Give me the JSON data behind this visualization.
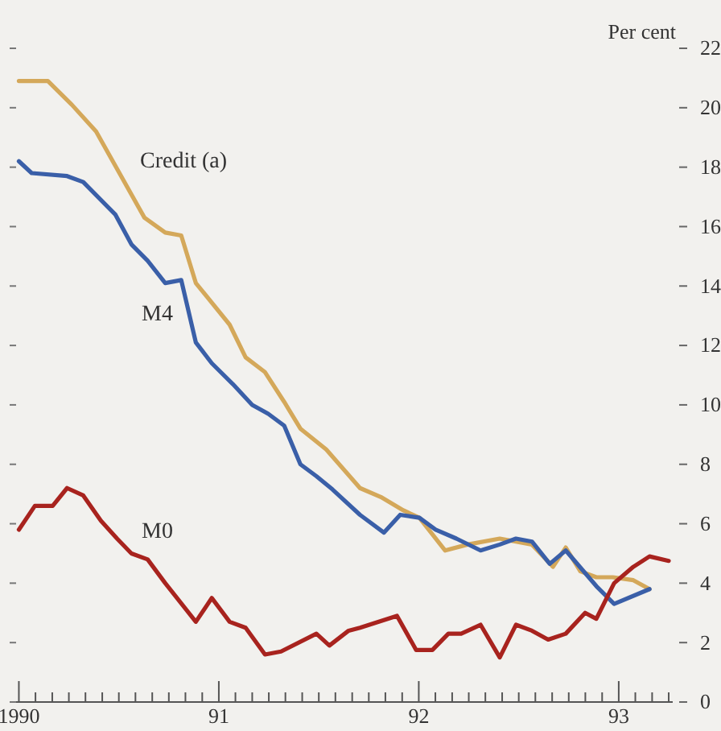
{
  "chart_data": {
    "type": "line",
    "ylabel": "Per cent",
    "xlim": [
      1989.97,
      1993.27
    ],
    "ylim": [
      0,
      22
    ],
    "yticks": [
      0,
      2,
      4,
      6,
      8,
      10,
      12,
      14,
      16,
      18,
      20,
      22
    ],
    "xticks": [
      {
        "value": 1990,
        "label": "1990"
      },
      {
        "value": 1990.083,
        "label": null
      },
      {
        "value": 1990.167,
        "label": null
      },
      {
        "value": 1990.25,
        "label": null
      },
      {
        "value": 1990.333,
        "label": null
      },
      {
        "value": 1990.417,
        "label": null
      },
      {
        "value": 1990.5,
        "label": null
      },
      {
        "value": 1990.583,
        "label": null
      },
      {
        "value": 1990.667,
        "label": null
      },
      {
        "value": 1990.75,
        "label": null
      },
      {
        "value": 1990.833,
        "label": null
      },
      {
        "value": 1990.917,
        "label": null
      },
      {
        "value": 1991,
        "label": "91"
      },
      {
        "value": 1991.083,
        "label": null
      },
      {
        "value": 1991.167,
        "label": null
      },
      {
        "value": 1991.25,
        "label": null
      },
      {
        "value": 1991.333,
        "label": null
      },
      {
        "value": 1991.417,
        "label": null
      },
      {
        "value": 1991.5,
        "label": null
      },
      {
        "value": 1991.583,
        "label": null
      },
      {
        "value": 1991.667,
        "label": null
      },
      {
        "value": 1991.75,
        "label": null
      },
      {
        "value": 1991.833,
        "label": null
      },
      {
        "value": 1991.917,
        "label": null
      },
      {
        "value": 1992,
        "label": "92"
      },
      {
        "value": 1992.083,
        "label": null
      },
      {
        "value": 1992.167,
        "label": null
      },
      {
        "value": 1992.25,
        "label": null
      },
      {
        "value": 1992.333,
        "label": null
      },
      {
        "value": 1992.417,
        "label": null
      },
      {
        "value": 1992.5,
        "label": null
      },
      {
        "value": 1992.583,
        "label": null
      },
      {
        "value": 1992.667,
        "label": null
      },
      {
        "value": 1992.75,
        "label": null
      },
      {
        "value": 1992.833,
        "label": null
      },
      {
        "value": 1992.917,
        "label": null
      },
      {
        "value": 1993,
        "label": "93"
      },
      {
        "value": 1993.083,
        "label": null
      },
      {
        "value": 1993.167,
        "label": null
      },
      {
        "value": 1993.25,
        "label": null
      }
    ],
    "grid": false,
    "legend": false,
    "marker": "none",
    "line_style": "solid",
    "series": [
      {
        "name": "Credit (a)",
        "color": "#d4a85a",
        "x": [
          1990,
          1990.145,
          1990.265,
          1990.386,
          1990.628,
          1990.732,
          1990.812,
          1990.885,
          1991.054,
          1991.134,
          1991.231,
          1991.327,
          1991.408,
          1991.537,
          1991.706,
          1991.81,
          1991.923,
          1992.003,
          1992.132,
          1992.244,
          1992.405,
          1992.566,
          1992.671,
          1992.735,
          1992.808,
          1992.888,
          1992.969,
          1993.073,
          1993.154
        ],
        "values": [
          20.9,
          20.9,
          20.1,
          19.2,
          16.3,
          15.8,
          15.7,
          14.1,
          12.7,
          11.6,
          11.1,
          10.1,
          9.2,
          8.5,
          7.2,
          6.9,
          6.45,
          6.2,
          5.1,
          5.3,
          5.5,
          5.3,
          4.55,
          5.2,
          4.4,
          4.2,
          4.2,
          4.1,
          3.8
        ]
      },
      {
        "name": "M4",
        "color": "#3a5fa8",
        "x": [
          1990,
          1990.064,
          1990.241,
          1990.322,
          1990.483,
          1990.563,
          1990.644,
          1990.732,
          1990.812,
          1990.885,
          1990.965,
          1991.07,
          1991.167,
          1991.247,
          1991.327,
          1991.408,
          1991.488,
          1991.569,
          1991.706,
          1991.826,
          1991.907,
          1992.003,
          1992.084,
          1992.188,
          1992.309,
          1992.405,
          1992.486,
          1992.566,
          1992.655,
          1992.735,
          1992.888,
          1992.977,
          1993.154
        ],
        "values": [
          18.2,
          17.8,
          17.7,
          17.5,
          16.4,
          15.4,
          14.85,
          14.1,
          14.2,
          12.1,
          11.4,
          10.7,
          10.0,
          9.7,
          9.3,
          8.0,
          7.6,
          7.15,
          6.3,
          5.7,
          6.3,
          6.2,
          5.8,
          5.5,
          5.1,
          5.3,
          5.5,
          5.4,
          4.65,
          5.1,
          3.9,
          3.3,
          3.8
        ]
      },
      {
        "name": "M0",
        "color": "#a8231e",
        "x": [
          1990,
          1990.08,
          1990.169,
          1990.241,
          1990.322,
          1990.41,
          1990.491,
          1990.563,
          1990.644,
          1990.732,
          1990.885,
          1990.965,
          1991.054,
          1991.134,
          1991.231,
          1991.311,
          1991.488,
          1991.553,
          1991.649,
          1991.706,
          1991.891,
          1991.987,
          1992.068,
          1992.148,
          1992.212,
          1992.309,
          1992.405,
          1992.486,
          1992.566,
          1992.647,
          1992.735,
          1992.832,
          1992.888,
          1992.977,
          1993.073,
          1993.154,
          1993.25
        ],
        "values": [
          5.8,
          6.6,
          6.6,
          7.2,
          6.95,
          6.1,
          5.5,
          5.0,
          4.8,
          4.0,
          2.7,
          3.5,
          2.7,
          2.5,
          1.6,
          1.7,
          2.3,
          1.9,
          2.4,
          2.5,
          2.9,
          1.75,
          1.75,
          2.3,
          2.3,
          2.6,
          1.5,
          2.6,
          2.4,
          2.1,
          2.3,
          3.0,
          2.8,
          4.0,
          4.55,
          4.9,
          4.75
        ]
      }
    ]
  }
}
